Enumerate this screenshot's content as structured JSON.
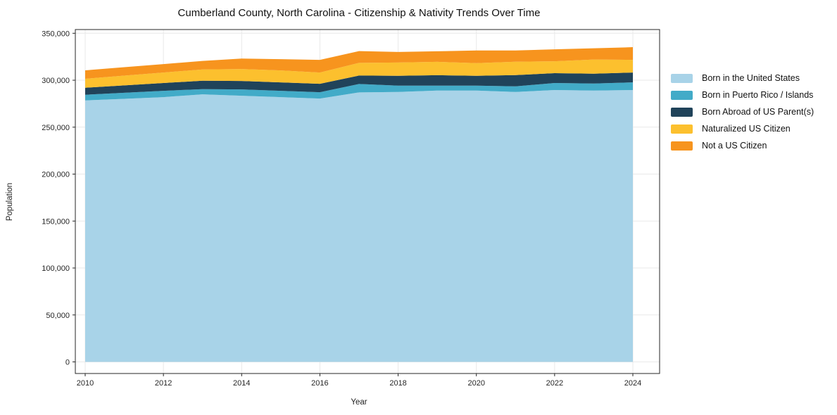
{
  "chart_data": {
    "type": "area",
    "stacked": true,
    "title": "Cumberland County, North Carolina - Citizenship & Nativity Trends Over Time",
    "xlabel": "Year",
    "ylabel": "Population",
    "x": [
      2010,
      2011,
      2012,
      2013,
      2014,
      2015,
      2016,
      2017,
      2018,
      2019,
      2020,
      2021,
      2022,
      2023,
      2024
    ],
    "xticks": [
      "2010",
      "2012",
      "2014",
      "2016",
      "2018",
      "2020",
      "2022",
      "2024"
    ],
    "yticks": [
      "0",
      "50,000",
      "100,000",
      "150,000",
      "200,000",
      "250,000",
      "300,000",
      "350,000"
    ],
    "ylim": [
      0,
      350000
    ],
    "grid": true,
    "legend_position": "right-outside",
    "series": [
      {
        "name": "Born in the United States",
        "color": "#a8d3e8",
        "values": [
          278500,
          280200,
          282000,
          285000,
          283500,
          282000,
          280500,
          287000,
          287500,
          289000,
          289000,
          287500,
          289500,
          289000,
          289500
        ]
      },
      {
        "name": "Born in Puerto Rico / Islands",
        "color": "#42abc8",
        "values": [
          6000,
          6400,
          6700,
          5500,
          6700,
          6700,
          6700,
          9000,
          6700,
          5200,
          5200,
          6000,
          7500,
          7500,
          8200
        ]
      },
      {
        "name": "Born Abroad of US Parent(s)",
        "color": "#20435a",
        "values": [
          7500,
          7900,
          8300,
          9000,
          9000,
          9000,
          9000,
          9000,
          10500,
          11200,
          10500,
          12000,
          10500,
          10500,
          10500
        ]
      },
      {
        "name": "Naturalized US Citizen",
        "color": "#fcc02e",
        "values": [
          9500,
          10400,
          11200,
          12000,
          12700,
          12700,
          12000,
          13500,
          14200,
          14200,
          13500,
          14200,
          12700,
          15000,
          13500
        ]
      },
      {
        "name": "Not a US Citizen",
        "color": "#f7941e",
        "values": [
          9000,
          9000,
          9000,
          9000,
          11200,
          12000,
          13500,
          12500,
          11200,
          11200,
          13500,
          12000,
          12700,
          12000,
          13500
        ]
      }
    ],
    "axis_color": "#262626",
    "grid_color": "#e9e9e9"
  }
}
